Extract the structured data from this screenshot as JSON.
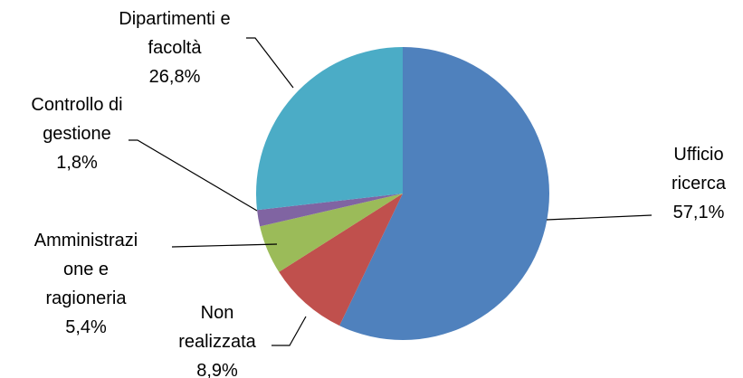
{
  "chart_data": {
    "type": "pie",
    "categories": [
      "Ufficio ricerca",
      "Non realizzata",
      "Amministrazione e ragioneria",
      "Controllo di gestione",
      "Dipartimenti e facoltà"
    ],
    "values": [
      57.1,
      8.9,
      5.4,
      1.8,
      26.8
    ],
    "value_labels": [
      "57,1%",
      "8,9%",
      "5,4%",
      "1,8%",
      "26,8%"
    ],
    "colors": [
      "#4F81BD",
      "#C0504D",
      "#9BBB59",
      "#8064A2",
      "#4BACC6"
    ]
  }
}
